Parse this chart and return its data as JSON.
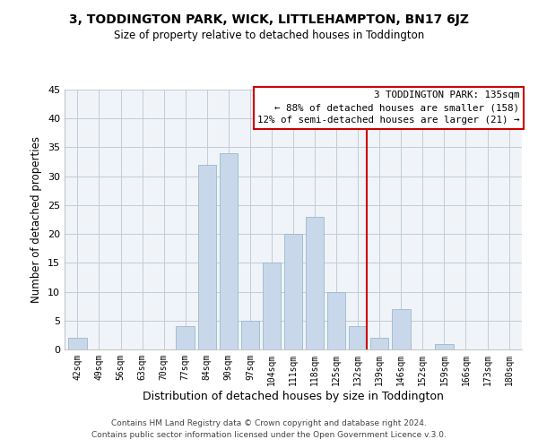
{
  "title": "3, TODDINGTON PARK, WICK, LITTLEHAMPTON, BN17 6JZ",
  "subtitle": "Size of property relative to detached houses in Toddington",
  "xlabel": "Distribution of detached houses by size in Toddington",
  "ylabel": "Number of detached properties",
  "bar_labels": [
    "42sqm",
    "49sqm",
    "56sqm",
    "63sqm",
    "70sqm",
    "77sqm",
    "84sqm",
    "90sqm",
    "97sqm",
    "104sqm",
    "111sqm",
    "118sqm",
    "125sqm",
    "132sqm",
    "139sqm",
    "146sqm",
    "152sqm",
    "159sqm",
    "166sqm",
    "173sqm",
    "180sqm"
  ],
  "bar_values": [
    2,
    0,
    0,
    0,
    0,
    4,
    32,
    34,
    5,
    15,
    20,
    23,
    10,
    4,
    2,
    7,
    0,
    1,
    0,
    0,
    0
  ],
  "bar_color": "#c8d8ea",
  "bar_edge_color": "#9ab8cc",
  "reference_line_color": "#cc0000",
  "ylim": [
    0,
    45
  ],
  "yticks": [
    0,
    5,
    10,
    15,
    20,
    25,
    30,
    35,
    40,
    45
  ],
  "annotation_title": "3 TODDINGTON PARK: 135sqm",
  "annotation_line1": "← 88% of detached houses are smaller (158)",
  "annotation_line2": "12% of semi-detached houses are larger (21) →",
  "annotation_box_color": "#ffffff",
  "annotation_box_edge": "#cc0000",
  "footer1": "Contains HM Land Registry data © Crown copyright and database right 2024.",
  "footer2": "Contains public sector information licensed under the Open Government Licence v.3.0.",
  "bg_color": "#f0f4f8"
}
